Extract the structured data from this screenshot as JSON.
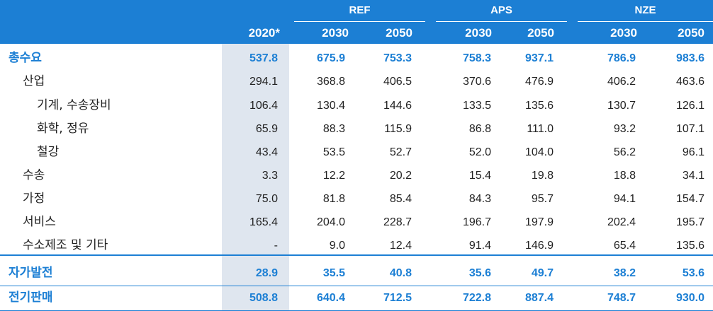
{
  "header": {
    "groups": [
      {
        "label": "REF"
      },
      {
        "label": "APS"
      },
      {
        "label": "NZE"
      }
    ],
    "years": [
      "2020*",
      "2030",
      "2050",
      "2030",
      "2050",
      "2030",
      "2050"
    ]
  },
  "rows": [
    {
      "label": "총수요",
      "values": [
        "537.8",
        "675.9",
        "753.3",
        "758.3",
        "937.1",
        "786.9",
        "983.6"
      ]
    },
    {
      "label": "산업",
      "values": [
        "294.1",
        "368.8",
        "406.5",
        "370.6",
        "476.9",
        "406.2",
        "463.6"
      ]
    },
    {
      "label": "기계, 수송장비",
      "values": [
        "106.4",
        "130.4",
        "144.6",
        "133.5",
        "135.6",
        "130.7",
        "126.1"
      ]
    },
    {
      "label": "화학, 정유",
      "values": [
        "65.9",
        "88.3",
        "115.9",
        "86.8",
        "111.0",
        "93.2",
        "107.1"
      ]
    },
    {
      "label": "철강",
      "values": [
        "43.4",
        "53.5",
        "52.7",
        "52.0",
        "104.0",
        "56.2",
        "96.1"
      ]
    },
    {
      "label": "수송",
      "values": [
        "3.3",
        "12.2",
        "20.2",
        "15.4",
        "19.8",
        "18.8",
        "34.1"
      ]
    },
    {
      "label": "가정",
      "values": [
        "75.0",
        "81.8",
        "85.4",
        "84.3",
        "95.7",
        "94.1",
        "154.7"
      ]
    },
    {
      "label": "서비스",
      "values": [
        "165.4",
        "204.0",
        "228.7",
        "196.7",
        "197.9",
        "202.4",
        "195.7"
      ]
    },
    {
      "label": "수소제조 및 기타",
      "values": [
        "-",
        "9.0",
        "12.4",
        "91.4",
        "146.9",
        "65.4",
        "135.6"
      ]
    },
    {
      "label": "자가발전",
      "values": [
        "28.9",
        "35.5",
        "40.8",
        "35.6",
        "49.7",
        "38.2",
        "53.6"
      ]
    },
    {
      "label": "전기판매",
      "values": [
        "508.8",
        "640.4",
        "712.5",
        "722.8",
        "887.4",
        "748.7",
        "930.0"
      ]
    }
  ]
}
